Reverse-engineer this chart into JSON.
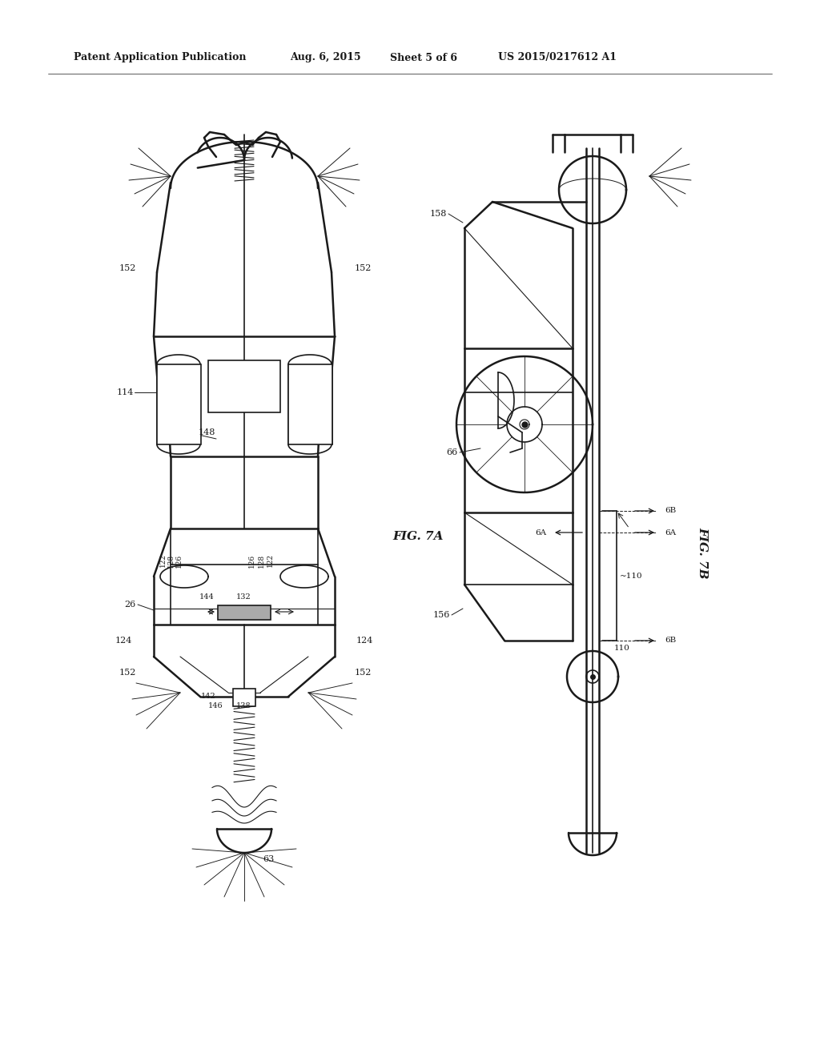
{
  "bg_color": "#ffffff",
  "line_color": "#1a1a1a",
  "header_text": "Patent Application Publication",
  "header_date": "Aug. 6, 2015",
  "header_sheet": "Sheet 5 of 6",
  "header_patent": "US 2015/0217612 A1",
  "fig_label_7A": "FIG. 7A",
  "fig_label_7B": "FIG. 7B"
}
